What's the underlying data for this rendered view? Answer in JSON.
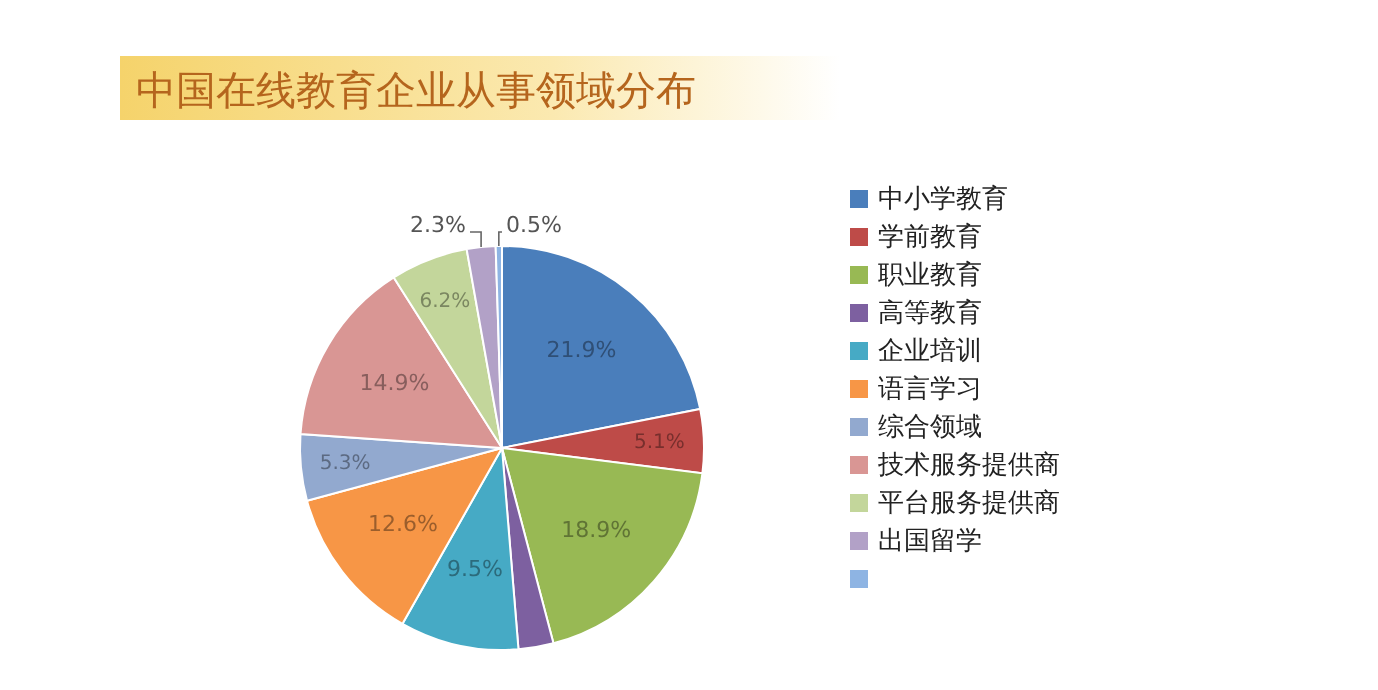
{
  "chart_data": {
    "type": "pie",
    "title": "中国在线教育企业从事领域分布",
    "categories": [
      "中小学教育",
      "学前教育",
      "职业教育",
      "高等教育",
      "企业培训",
      "语言学习",
      "综合领域",
      "技术服务提供商",
      "平台服务提供商",
      "出国留学",
      null
    ],
    "values": [
      21.9,
      5.1,
      18.9,
      2.8,
      9.5,
      12.6,
      5.3,
      14.9,
      6.2,
      2.3,
      0.5
    ],
    "value_labels": [
      "21.9%",
      "5.1%",
      "18.9%",
      null,
      "9.5%",
      "12.6%",
      "5.3%",
      "14.9%",
      "6.2%",
      "2.3%",
      "0.5%"
    ],
    "colors": [
      "#4a7ebb",
      "#be4b48",
      "#98b954",
      "#7d60a0",
      "#46aac5",
      "#f79646",
      "#92a9cf",
      "#d99694",
      "#c3d69b",
      "#b2a1c7",
      "#8eb4e3"
    ],
    "legend": "right"
  }
}
